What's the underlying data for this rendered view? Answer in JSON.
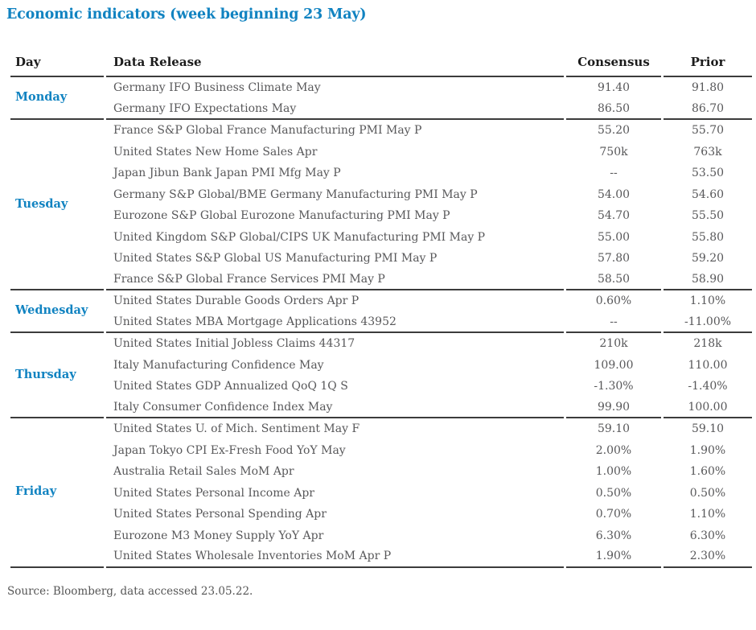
{
  "title": "Economic indicators (week beginning 23 May)",
  "colors": {
    "accent_blue": "#1183c1",
    "rule_line": "#3c3c3c",
    "body_text": "#58585a",
    "header_text": "#1c1c1c"
  },
  "table": {
    "headers": {
      "day": "Day",
      "release": "Data Release",
      "consensus": "Consensus",
      "prior": "Prior"
    },
    "groups": [
      {
        "day": "Monday",
        "rows": [
          {
            "release": "Germany IFO Business Climate May",
            "consensus": "91.40",
            "prior": "91.80"
          },
          {
            "release": "Germany IFO Expectations May",
            "consensus": "86.50",
            "prior": "86.70"
          }
        ]
      },
      {
        "day": "Tuesday",
        "rows": [
          {
            "release": "France S&P Global France Manufacturing PMI May P",
            "consensus": "55.20",
            "prior": "55.70"
          },
          {
            "release": "United States New Home Sales Apr",
            "consensus": "750k",
            "prior": "763k"
          },
          {
            "release": "Japan Jibun Bank Japan PMI Mfg May P",
            "consensus": "--",
            "prior": "53.50"
          },
          {
            "release": "Germany S&P Global/BME Germany Manufacturing PMI May P",
            "consensus": "54.00",
            "prior": "54.60"
          },
          {
            "release": "Eurozone S&P Global Eurozone Manufacturing PMI May P",
            "consensus": "54.70",
            "prior": "55.50"
          },
          {
            "release": "United Kingdom S&P Global/CIPS UK Manufacturing PMI May P",
            "consensus": "55.00",
            "prior": "55.80"
          },
          {
            "release": "United States S&P Global US Manufacturing PMI May P",
            "consensus": "57.80",
            "prior": "59.20"
          },
          {
            "release": "France S&P Global France Services PMI May P",
            "consensus": "58.50",
            "prior": "58.90"
          }
        ]
      },
      {
        "day": "Wednesday",
        "rows": [
          {
            "release": "United States Durable Goods Orders Apr P",
            "consensus": "0.60%",
            "prior": "1.10%"
          },
          {
            "release": "United States MBA Mortgage Applications 43952",
            "consensus": "--",
            "prior": "-11.00%"
          }
        ]
      },
      {
        "day": "Thursday",
        "rows": [
          {
            "release": "United States Initial Jobless Claims 44317",
            "consensus": "210k",
            "prior": "218k"
          },
          {
            "release": "Italy Manufacturing Confidence May",
            "consensus": "109.00",
            "prior": "110.00"
          },
          {
            "release": "United States GDP Annualized QoQ 1Q S",
            "consensus": "-1.30%",
            "prior": "-1.40%"
          },
          {
            "release": "Italy Consumer Confidence Index May",
            "consensus": "99.90",
            "prior": "100.00"
          }
        ]
      },
      {
        "day": "Friday",
        "rows": [
          {
            "release": "United States U. of Mich. Sentiment May F",
            "consensus": "59.10",
            "prior": "59.10"
          },
          {
            "release": "Japan Tokyo CPI Ex-Fresh Food YoY May",
            "consensus": "2.00%",
            "prior": "1.90%"
          },
          {
            "release": "Australia Retail Sales MoM Apr",
            "consensus": "1.00%",
            "prior": "1.60%"
          },
          {
            "release": "United States Personal Income Apr",
            "consensus": "0.50%",
            "prior": "0.50%"
          },
          {
            "release": "United States Personal Spending Apr",
            "consensus": "0.70%",
            "prior": "1.10%"
          },
          {
            "release": "Eurozone M3 Money Supply YoY Apr",
            "consensus": "6.30%",
            "prior": "6.30%"
          },
          {
            "release": "United States Wholesale Inventories MoM Apr P",
            "consensus": "1.90%",
            "prior": "2.30%"
          }
        ]
      }
    ]
  },
  "footer": {
    "source": "Source: Bloomberg, data accessed 23.05.22."
  }
}
